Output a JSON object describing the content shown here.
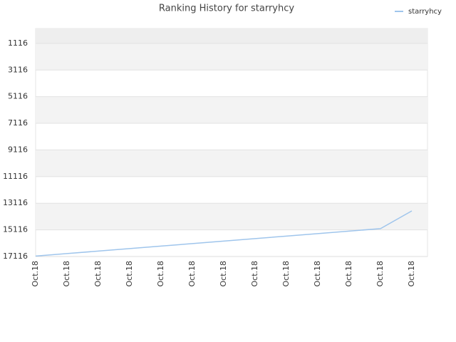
{
  "chart_data": {
    "type": "line",
    "title": "Ranking History for starryhcy",
    "categories": [
      "Oct.18",
      "Oct.18",
      "Oct.18",
      "Oct.18",
      "Oct.18",
      "Oct.18",
      "Oct.18",
      "Oct.18",
      "Oct.18",
      "Oct.18",
      "Oct.18",
      "Oct.18",
      "Oct.18"
    ],
    "series": [
      {
        "name": "starryhcy",
        "color": "#9fc5ec",
        "values": [
          17080,
          16896,
          16709,
          16521,
          16334,
          16147,
          15959,
          15772,
          15585,
          15397,
          15210,
          15023,
          13694
        ]
      }
    ],
    "ylim": [
      17116,
      0
    ],
    "yticks": [
      1116,
      3116,
      5116,
      7116,
      9116,
      11116,
      13116,
      15116,
      17116
    ],
    "grid": true,
    "legend": "top-right"
  }
}
